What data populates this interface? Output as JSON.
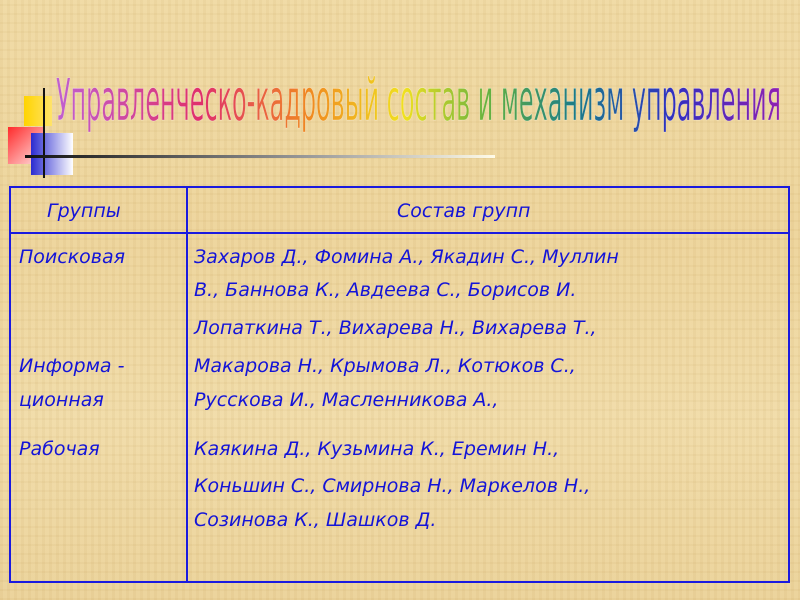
{
  "title": "Управленческо-кадровый состав и механизм управления",
  "colors": {
    "table_border": "#1a1adf",
    "text": "#1414d8"
  },
  "table": {
    "headers": [
      "Группы",
      "Состав групп"
    ],
    "groups": [
      {
        "name_lines": [
          "Поисковая"
        ],
        "member_lines": [
          "Захаров Д., Фомина А., Якадин С., Муллин",
          "В., Баннова К., Авдеева С., Борисов И."
        ]
      },
      {
        "name_lines": [
          "Информа -",
          "ционная"
        ],
        "member_lines": [
          "Лопаткина Т., Вихарева Н., Вихарева Т.,",
          "Макарова Н., Крымова Л., Котюков С.,",
          "Русскова И., Масленникова А.,"
        ]
      },
      {
        "name_lines": [
          "Рабочая"
        ],
        "member_lines": [
          "Каякина Д., Кузьмина К., Еремин Н.,",
          "Коньшин С., Смирнова Н., Маркелов Н.,",
          "Созинова К., Шашков Д."
        ]
      }
    ]
  }
}
